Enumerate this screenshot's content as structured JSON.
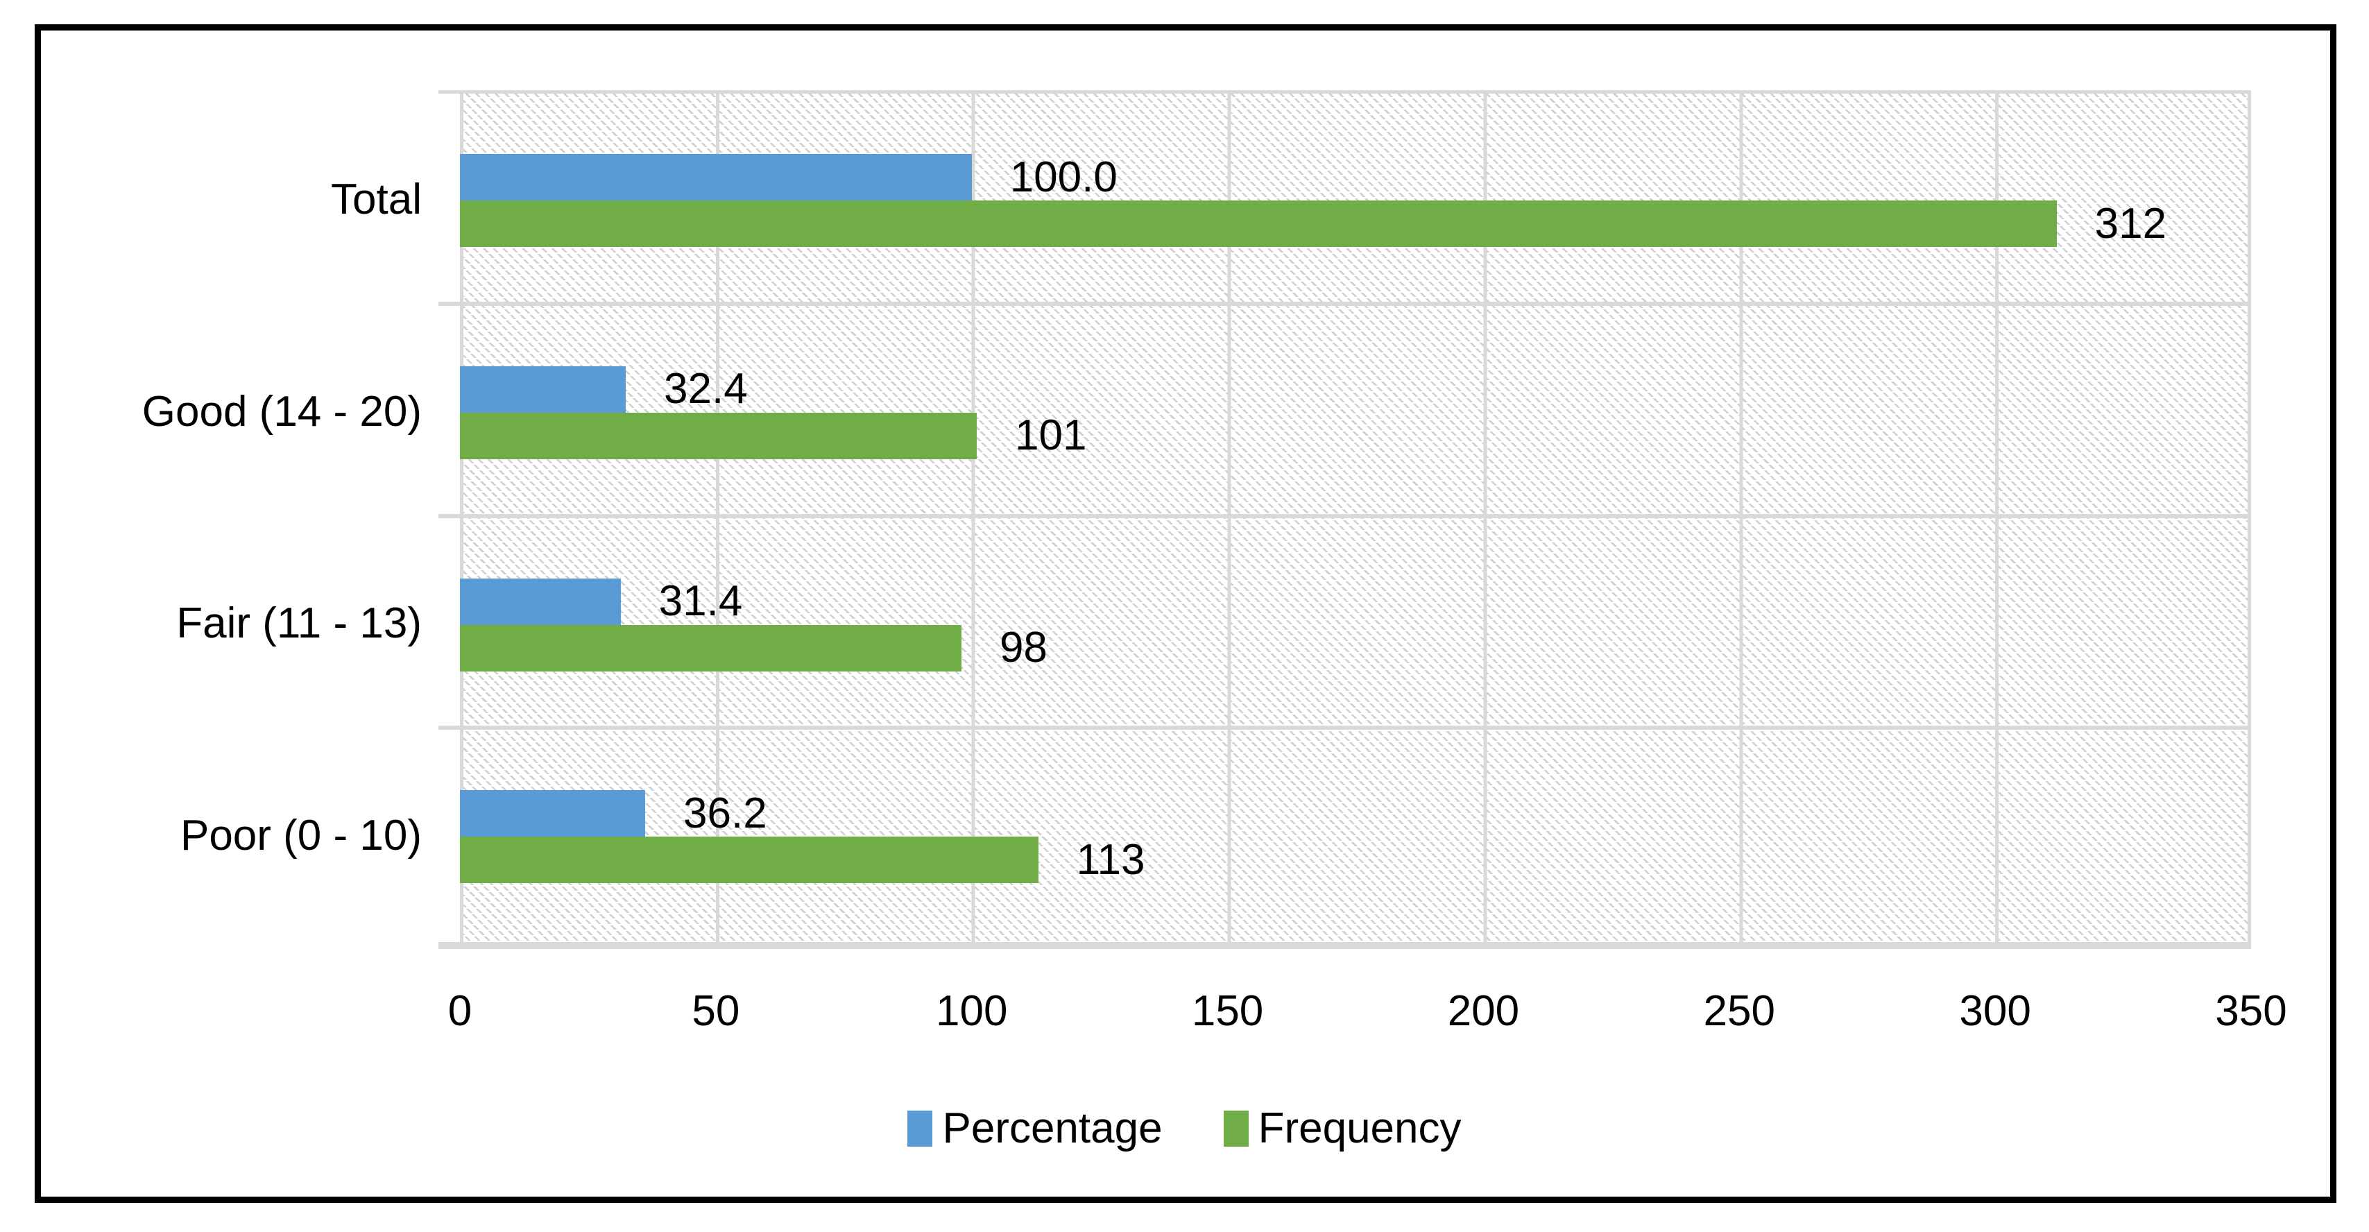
{
  "chart_data": {
    "type": "bar",
    "orientation": "horizontal",
    "title": "",
    "categories": [
      "Total",
      "Good (14 - 20)",
      "Fair (11 - 13)",
      "Poor (0 - 10)"
    ],
    "series": [
      {
        "name": "Percentage",
        "color": "#5B9BD5",
        "values": [
          100.0,
          32.4,
          31.4,
          36.2
        ],
        "data_labels": [
          "100.0",
          "32.4",
          "31.4",
          "36.2"
        ]
      },
      {
        "name": "Frequency",
        "color": "#70AD47",
        "values": [
          312,
          101,
          98,
          113
        ],
        "data_labels": [
          "312",
          "101",
          "98",
          "113"
        ]
      }
    ],
    "x_axis": {
      "min": 0,
      "max": 350,
      "tick_interval": 50,
      "tick_labels": [
        "0",
        "50",
        "100",
        "150",
        "200",
        "250",
        "300",
        "350"
      ]
    },
    "grid": true,
    "plot_background": "light-diagonal-hatch",
    "legend_position": "bottom"
  },
  "colors": {
    "percentage_bar": "#5B9BD5",
    "frequency_bar": "#70AD47",
    "gridline": "#D9D9D9",
    "frame_border": "#000000",
    "background": "#FFFFFF"
  }
}
